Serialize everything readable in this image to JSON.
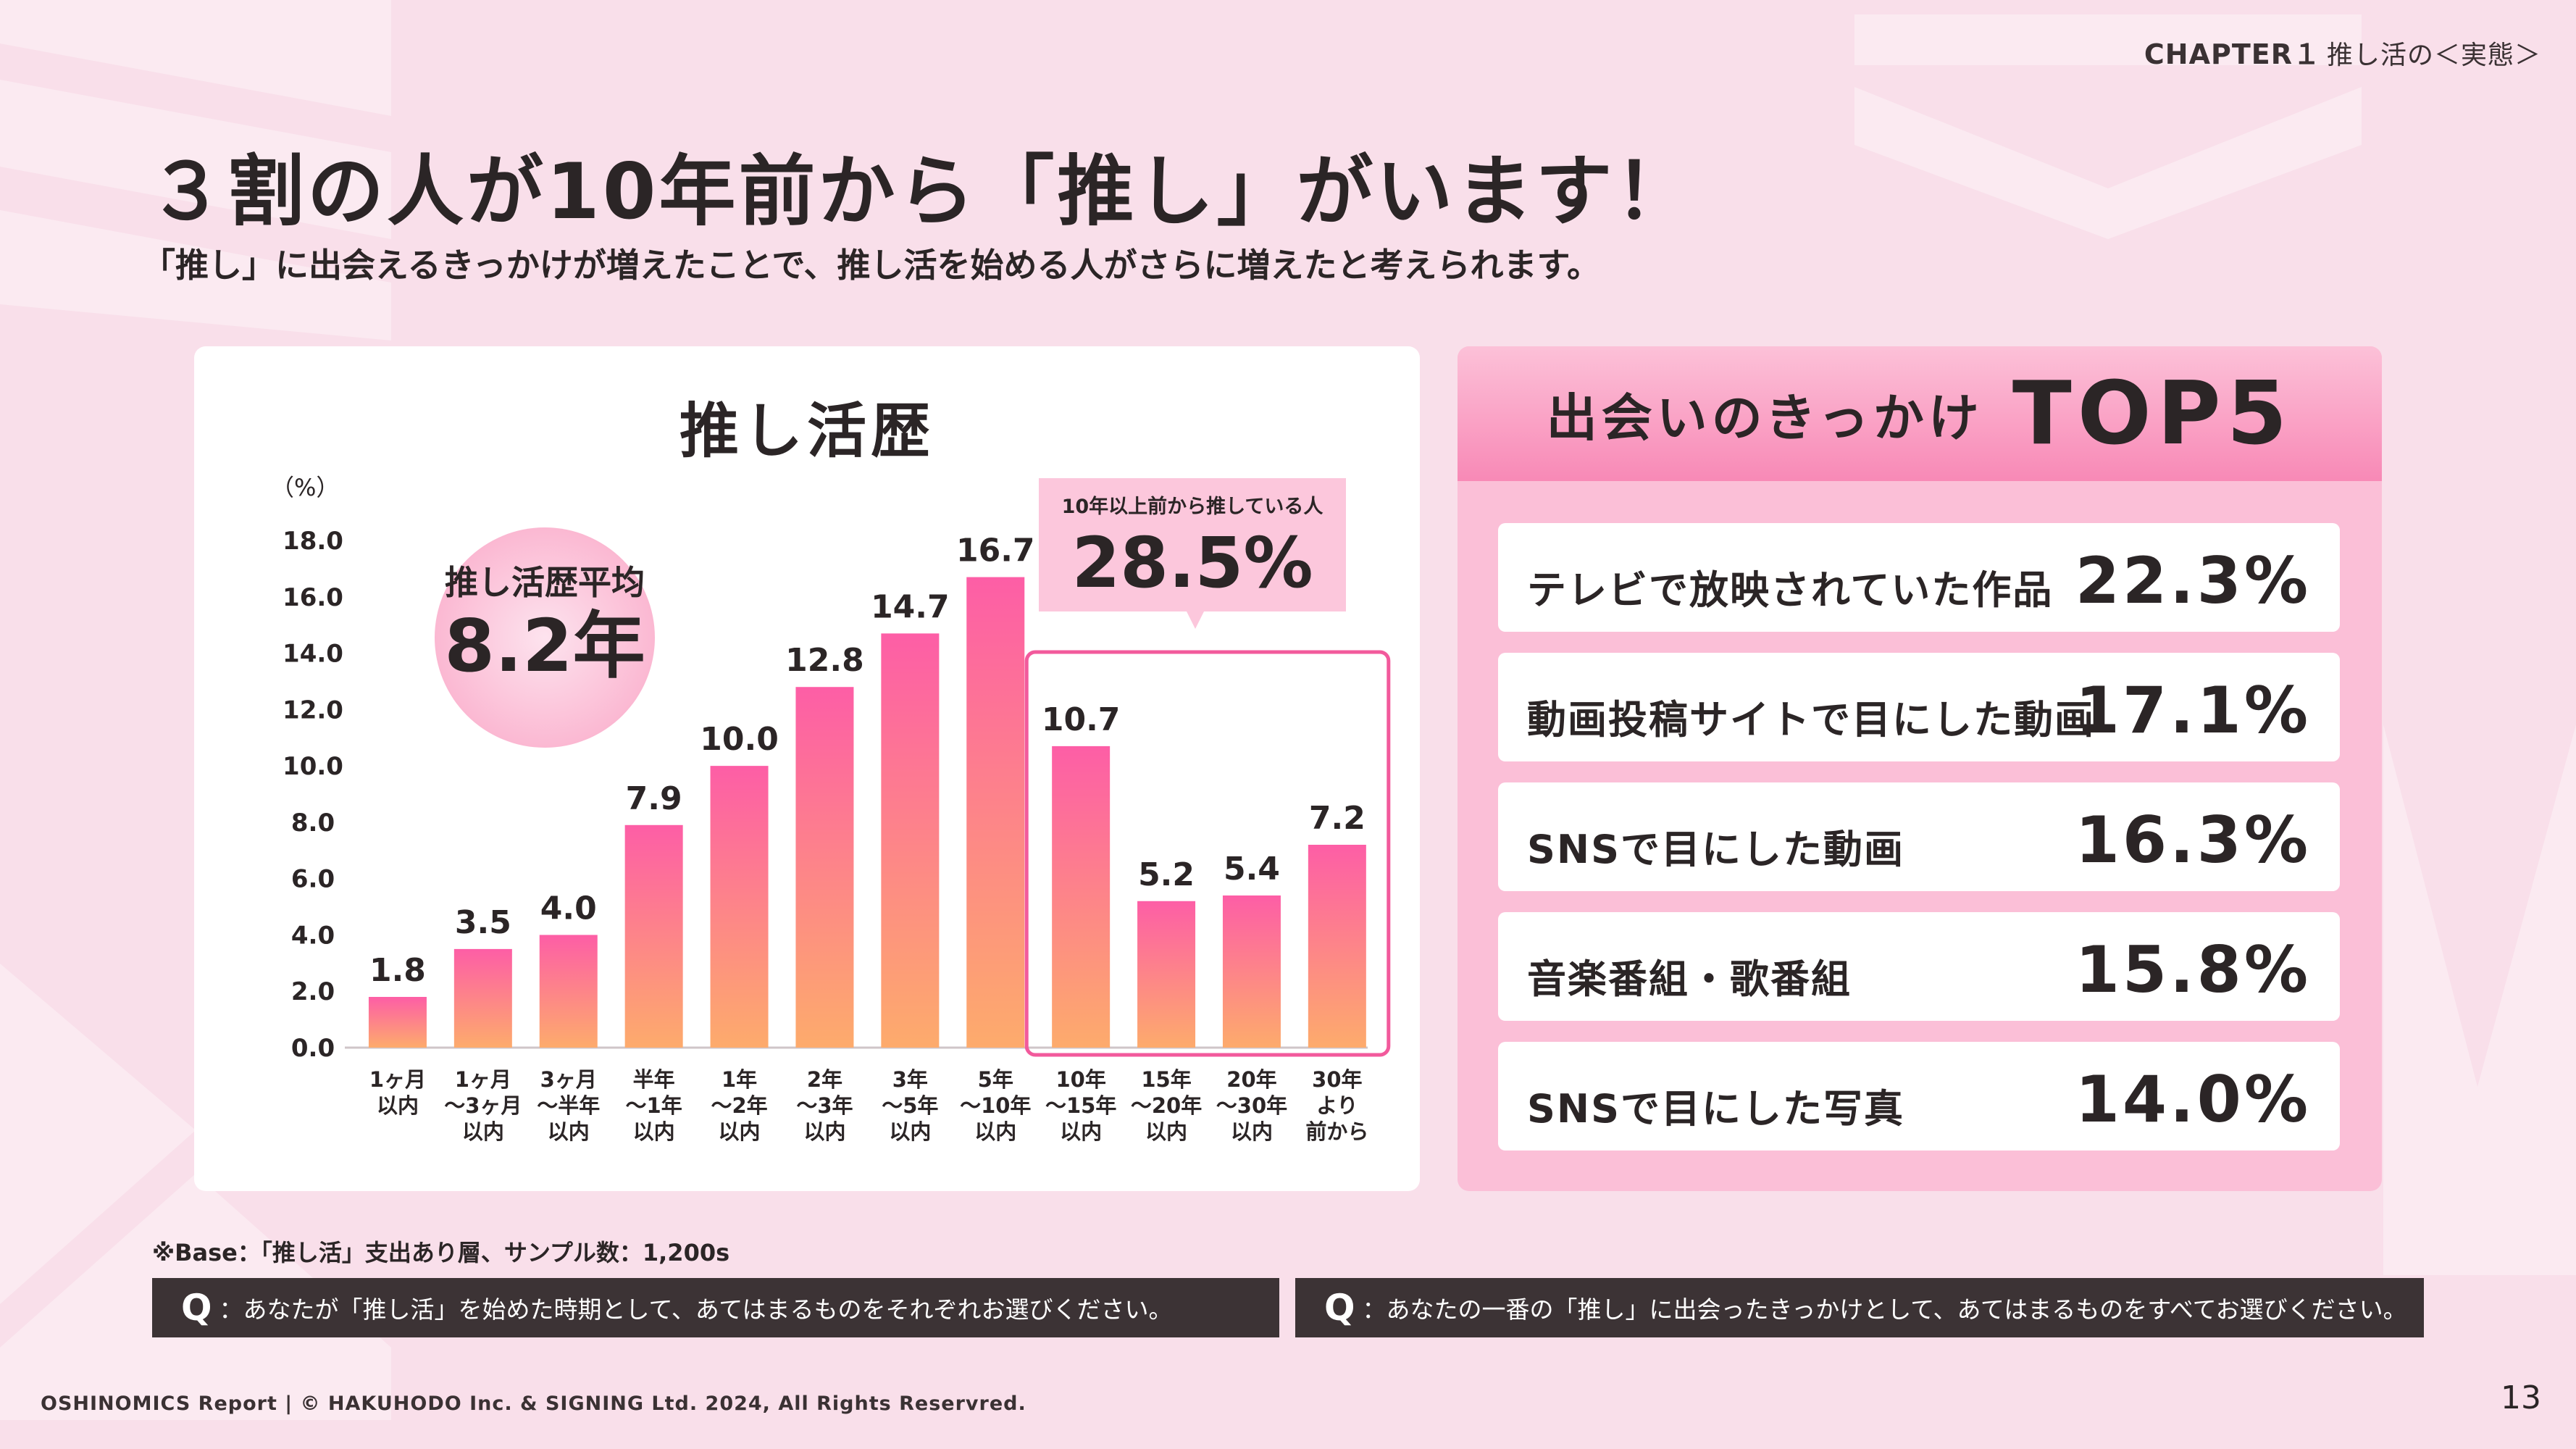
{
  "header": {
    "chapter": "CHAPTER１",
    "chapter_sub": "推し活の＜実態＞",
    "headline": "３割の人が10年前から「推し」がいます！",
    "lead": "「推し」に出会えるきっかけが増えたことで、推し活を始める人がさらに増えたと考えられます。"
  },
  "chart_data": {
    "type": "bar",
    "title": "推し活歴",
    "ylabel": "（%）",
    "ylim": [
      0,
      18
    ],
    "yticks": [
      "18.0",
      "16.0",
      "14.0",
      "12.0",
      "10.0",
      "8.0",
      "6.0",
      "4.0",
      "2.0",
      "0.0"
    ],
    "categories": [
      [
        "1ヶ月",
        "以内"
      ],
      [
        "1ヶ月",
        "～3ヶ月",
        "以内"
      ],
      [
        "3ヶ月",
        "～半年",
        "以内"
      ],
      [
        "半年",
        "～1年",
        "以内"
      ],
      [
        "1年",
        "～2年",
        "以内"
      ],
      [
        "2年",
        "～3年",
        "以内"
      ],
      [
        "3年",
        "～5年",
        "以内"
      ],
      [
        "5年",
        "～10年",
        "以内"
      ],
      [
        "10年",
        "～15年",
        "以内"
      ],
      [
        "15年",
        "～20年",
        "以内"
      ],
      [
        "20年",
        "～30年",
        "以内"
      ],
      [
        "30年",
        "より",
        "前から"
      ]
    ],
    "values": [
      1.8,
      3.5,
      4.0,
      7.9,
      10.0,
      12.8,
      14.7,
      16.7,
      10.7,
      5.2,
      5.4,
      7.2
    ],
    "value_labels": [
      "1.8",
      "3.5",
      "4.0",
      "7.9",
      "10.0",
      "12.8",
      "14.7",
      "16.7",
      "10.7",
      "5.2",
      "5.4",
      "7.2"
    ],
    "bar_colors": [
      "#fd5ea6",
      "#fdab6c"
    ],
    "average": {
      "label": "推し活歴平均",
      "value": "8.2年"
    },
    "highlight": {
      "from_index": 8,
      "to_index": 11,
      "label": "10年以上前から推している人",
      "value": "28.5%",
      "color": "#f25a9c"
    }
  },
  "top5": {
    "title": "出会いのきっかけ",
    "title_strong": "TOP5",
    "items": [
      {
        "label": "テレビで放映されていた作品",
        "value": "22.3%"
      },
      {
        "label": "動画投稿サイトで目にした動画",
        "value": "17.1%"
      },
      {
        "label": "SNSで目にした動画",
        "value": "16.3%"
      },
      {
        "label": "音楽番組・歌番組",
        "value": "15.8%"
      },
      {
        "label": "SNSで目にした写真",
        "value": "14.0%"
      }
    ]
  },
  "notes": {
    "base": "※Base：「推し活」支出あり層、サンプル数：1,200s",
    "q_mark": "Q",
    "q1": "：あなたが「推し活」を始めた時期として、あてはまるものをそれぞれお選びください。",
    "q2": "：あなたの一番の「推し」に出会ったきっかけとして、あてはまるものをすべてお選びください。"
  },
  "footer": {
    "copyright": "OSHINOMICS Report | © HAKUHODO Inc. & SIGNING Ltd. 2024, All Rights Reservred.",
    "page": "13"
  }
}
